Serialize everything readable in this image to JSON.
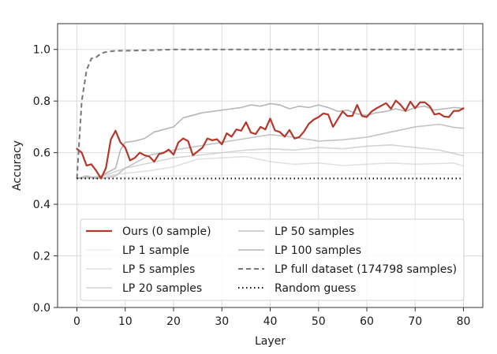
{
  "chart_data": {
    "type": "line",
    "xlabel": "Layer",
    "ylabel": "Accuracy",
    "xlim": [
      -4,
      84
    ],
    "ylim": [
      0,
      1.1
    ],
    "xticks": [
      0,
      10,
      20,
      30,
      40,
      50,
      60,
      70,
      80
    ],
    "yticks": [
      0.0,
      0.2,
      0.4,
      0.6,
      0.8,
      1.0
    ],
    "xtick_labels": [
      "0",
      "10",
      "20",
      "30",
      "40",
      "50",
      "60",
      "70",
      "80"
    ],
    "ytick_labels": [
      "0.0",
      "0.2",
      "0.4",
      "0.6",
      "0.8",
      "1.0"
    ],
    "grid": true,
    "legend_position": "lower-center",
    "series": [
      {
        "name": "Ours (0 sample)",
        "color": "#b5362a",
        "width": 2.2,
        "dash": "solid",
        "opacity": 1,
        "x": [
          0,
          1,
          2,
          3,
          4,
          5,
          6,
          7,
          8,
          9,
          10,
          11,
          12,
          13,
          14,
          15,
          16,
          17,
          18,
          19,
          20,
          21,
          22,
          23,
          24,
          25,
          26,
          27,
          28,
          29,
          30,
          31,
          32,
          33,
          34,
          35,
          36,
          37,
          38,
          39,
          40,
          41,
          42,
          43,
          44,
          45,
          46,
          47,
          48,
          49,
          50,
          51,
          52,
          53,
          54,
          55,
          56,
          57,
          58,
          59,
          60,
          61,
          62,
          63,
          64,
          65,
          66,
          67,
          68,
          69,
          70,
          71,
          72,
          73,
          74,
          75,
          76,
          77,
          78,
          79,
          80
        ],
        "y": [
          0.615,
          0.6,
          0.55,
          0.555,
          0.53,
          0.5,
          0.54,
          0.65,
          0.685,
          0.64,
          0.62,
          0.57,
          0.58,
          0.6,
          0.59,
          0.585,
          0.565,
          0.595,
          0.6,
          0.612,
          0.592,
          0.64,
          0.655,
          0.645,
          0.59,
          0.605,
          0.62,
          0.655,
          0.648,
          0.652,
          0.632,
          0.675,
          0.662,
          0.69,
          0.685,
          0.718,
          0.678,
          0.672,
          0.7,
          0.69,
          0.732,
          0.686,
          0.68,
          0.662,
          0.688,
          0.655,
          0.66,
          0.682,
          0.712,
          0.728,
          0.738,
          0.752,
          0.748,
          0.7,
          0.73,
          0.76,
          0.742,
          0.742,
          0.785,
          0.742,
          0.738,
          0.76,
          0.772,
          0.782,
          0.792,
          0.77,
          0.802,
          0.785,
          0.762,
          0.798,
          0.772,
          0.795,
          0.795,
          0.78,
          0.748,
          0.752,
          0.74,
          0.738,
          0.762,
          0.762,
          0.772
        ]
      },
      {
        "name": "LP 1 sample",
        "color": "#bdbdbd",
        "width": 1.6,
        "dash": "solid",
        "opacity": 0.28,
        "x": [
          0,
          5,
          10,
          15,
          20,
          25,
          30,
          35,
          40,
          45,
          50,
          55,
          60,
          65,
          70,
          75,
          80
        ],
        "y": [
          0.5,
          0.5,
          0.505,
          0.508,
          0.51,
          0.51,
          0.512,
          0.515,
          0.515,
          0.512,
          0.515,
          0.515,
          0.517,
          0.515,
          0.518,
          0.516,
          0.515
        ]
      },
      {
        "name": "LP 5 samples",
        "color": "#bdbdbd",
        "width": 1.6,
        "dash": "solid",
        "opacity": 0.45,
        "x": [
          0,
          4,
          6,
          10,
          15,
          20,
          25,
          30,
          35,
          40,
          45,
          50,
          55,
          60,
          65,
          70,
          75,
          78,
          80
        ],
        "y": [
          0.5,
          0.505,
          0.51,
          0.52,
          0.53,
          0.545,
          0.575,
          0.58,
          0.585,
          0.565,
          0.555,
          0.56,
          0.55,
          0.555,
          0.56,
          0.555,
          0.558,
          0.56,
          0.548
        ]
      },
      {
        "name": "LP 20 samples",
        "color": "#bdbdbd",
        "width": 1.6,
        "dash": "solid",
        "opacity": 0.65,
        "x": [
          0,
          3,
          5,
          7,
          10,
          15,
          20,
          25,
          30,
          35,
          40,
          45,
          50,
          55,
          60,
          65,
          70,
          75,
          80
        ],
        "y": [
          0.5,
          0.505,
          0.51,
          0.52,
          0.54,
          0.56,
          0.58,
          0.59,
          0.6,
          0.61,
          0.615,
          0.61,
          0.62,
          0.615,
          0.625,
          0.63,
          0.62,
          0.61,
          0.588
        ]
      },
      {
        "name": "LP 50 samples",
        "color": "#bdbdbd",
        "width": 1.6,
        "dash": "solid",
        "opacity": 0.9,
        "x": [
          0,
          3,
          5,
          8,
          10,
          15,
          20,
          25,
          30,
          35,
          40,
          45,
          50,
          55,
          60,
          65,
          70,
          75,
          78,
          80
        ],
        "y": [
          0.5,
          0.505,
          0.5,
          0.51,
          0.54,
          0.59,
          0.61,
          0.625,
          0.64,
          0.655,
          0.67,
          0.66,
          0.645,
          0.65,
          0.66,
          0.68,
          0.7,
          0.71,
          0.698,
          0.695
        ]
      },
      {
        "name": "LP 100 samples",
        "color": "#a9a9a9",
        "width": 1.6,
        "dash": "solid",
        "opacity": 0.85,
        "x": [
          0,
          2,
          4,
          6,
          8,
          9,
          10,
          12,
          14,
          16,
          18,
          20,
          22,
          24,
          26,
          28,
          30,
          32,
          34,
          36,
          38,
          40,
          42,
          44,
          46,
          48,
          50,
          52,
          54,
          56,
          58,
          60,
          62,
          64,
          66,
          68,
          70,
          72,
          74,
          76,
          78,
          80
        ],
        "y": [
          0.5,
          0.51,
          0.5,
          0.52,
          0.54,
          0.61,
          0.64,
          0.645,
          0.655,
          0.68,
          0.69,
          0.7,
          0.735,
          0.745,
          0.755,
          0.76,
          0.765,
          0.77,
          0.775,
          0.785,
          0.78,
          0.79,
          0.785,
          0.77,
          0.78,
          0.775,
          0.785,
          0.775,
          0.76,
          0.765,
          0.75,
          0.745,
          0.755,
          0.76,
          0.77,
          0.76,
          0.775,
          0.78,
          0.765,
          0.77,
          0.775,
          0.772
        ]
      },
      {
        "name": "LP full dataset (174798 samples)",
        "color": "#777777",
        "width": 2.0,
        "dash": "6,4",
        "opacity": 1,
        "x": [
          0,
          1,
          2,
          3,
          4,
          5,
          6,
          8,
          10,
          15,
          20,
          25,
          30,
          40,
          50,
          60,
          70,
          80
        ],
        "y": [
          0.5,
          0.8,
          0.92,
          0.965,
          0.97,
          0.985,
          0.99,
          0.995,
          0.995,
          0.997,
          1.0,
          1.0,
          1.0,
          1.0,
          1.0,
          1.0,
          1.0,
          1.0
        ]
      },
      {
        "name": "Random guess",
        "color": "#111111",
        "width": 2.0,
        "dash": "1.5,3.5",
        "opacity": 1,
        "x": [
          0,
          80
        ],
        "y": [
          0.5,
          0.5
        ]
      }
    ]
  }
}
